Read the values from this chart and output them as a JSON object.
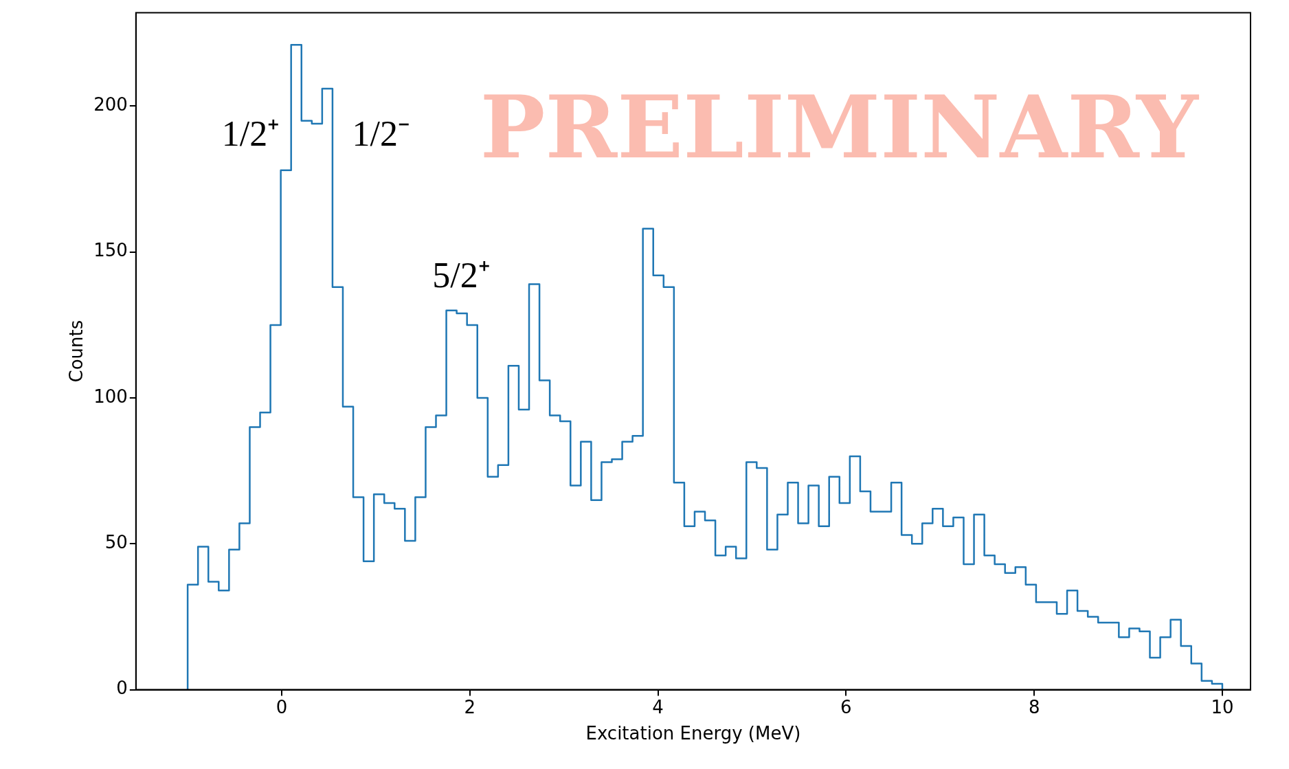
{
  "chart_data": {
    "type": "histogram",
    "xlabel": "Excitation Energy (MeV)",
    "ylabel": "Counts",
    "bins": [
      -1,
      -0.89,
      -0.78,
      -0.67,
      -0.56,
      -0.45,
      -0.34,
      -0.23,
      -0.12,
      -0.01,
      0.1,
      0.21,
      0.32,
      0.43,
      0.54,
      0.65,
      0.76,
      0.87,
      0.98,
      1.09,
      1.2,
      1.31,
      1.42,
      1.53,
      1.64,
      1.75,
      1.86,
      1.97,
      2.08,
      2.19,
      2.3,
      2.41,
      2.52,
      2.63,
      2.74,
      2.85,
      2.96,
      3.07,
      3.18,
      3.29,
      3.4,
      3.51,
      3.62,
      3.73,
      3.84,
      3.95,
      4.06,
      4.17,
      4.28,
      4.39,
      4.5,
      4.61,
      4.72,
      4.83,
      4.94,
      5.05,
      5.16,
      5.27,
      5.38,
      5.49,
      5.6,
      5.71,
      5.82,
      5.93,
      6.04,
      6.15,
      6.26,
      6.37,
      6.48,
      6.59,
      6.7,
      6.81,
      6.92,
      7.03,
      7.14,
      7.25,
      7.36,
      7.47,
      7.58,
      7.69,
      7.8,
      7.91,
      8.02,
      8.13,
      8.24,
      8.35,
      8.46,
      8.57,
      8.68,
      8.79,
      8.9,
      9.01,
      9.12,
      9.23,
      9.34,
      9.45,
      9.56,
      9.67,
      9.78,
      9.89,
      10
    ],
    "values": [
      36,
      49,
      37,
      34,
      48,
      57,
      90,
      95,
      125,
      178,
      221,
      195,
      194,
      206,
      138,
      97,
      66,
      44,
      67,
      64,
      62,
      51,
      66,
      90,
      94,
      130,
      129,
      125,
      100,
      73,
      77,
      111,
      96,
      139,
      106,
      94,
      92,
      70,
      85,
      65,
      78,
      79,
      85,
      87,
      158,
      142,
      138,
      71,
      56,
      61,
      58,
      46,
      49,
      45,
      78,
      76,
      48,
      60,
      71,
      57,
      70,
      56,
      73,
      64,
      80,
      68,
      61,
      61,
      71,
      53,
      50,
      57,
      62,
      56,
      59,
      43,
      60,
      46,
      43,
      40,
      42,
      36,
      30,
      30,
      26,
      34,
      27,
      25,
      23,
      23,
      18,
      21,
      20,
      11,
      18,
      24,
      15,
      9,
      3,
      2
    ],
    "color": "#1f77b4",
    "xlim": [
      -1.55,
      10.3
    ],
    "xticks": [
      0,
      2,
      4,
      6,
      8,
      10
    ],
    "ylim": [
      0,
      232
    ],
    "yticks": [
      0,
      50,
      100,
      150,
      200
    ],
    "annotations": [
      "1/2⁺",
      "1/2⁻",
      "5/2⁺",
      "PRELIMINARY"
    ]
  }
}
